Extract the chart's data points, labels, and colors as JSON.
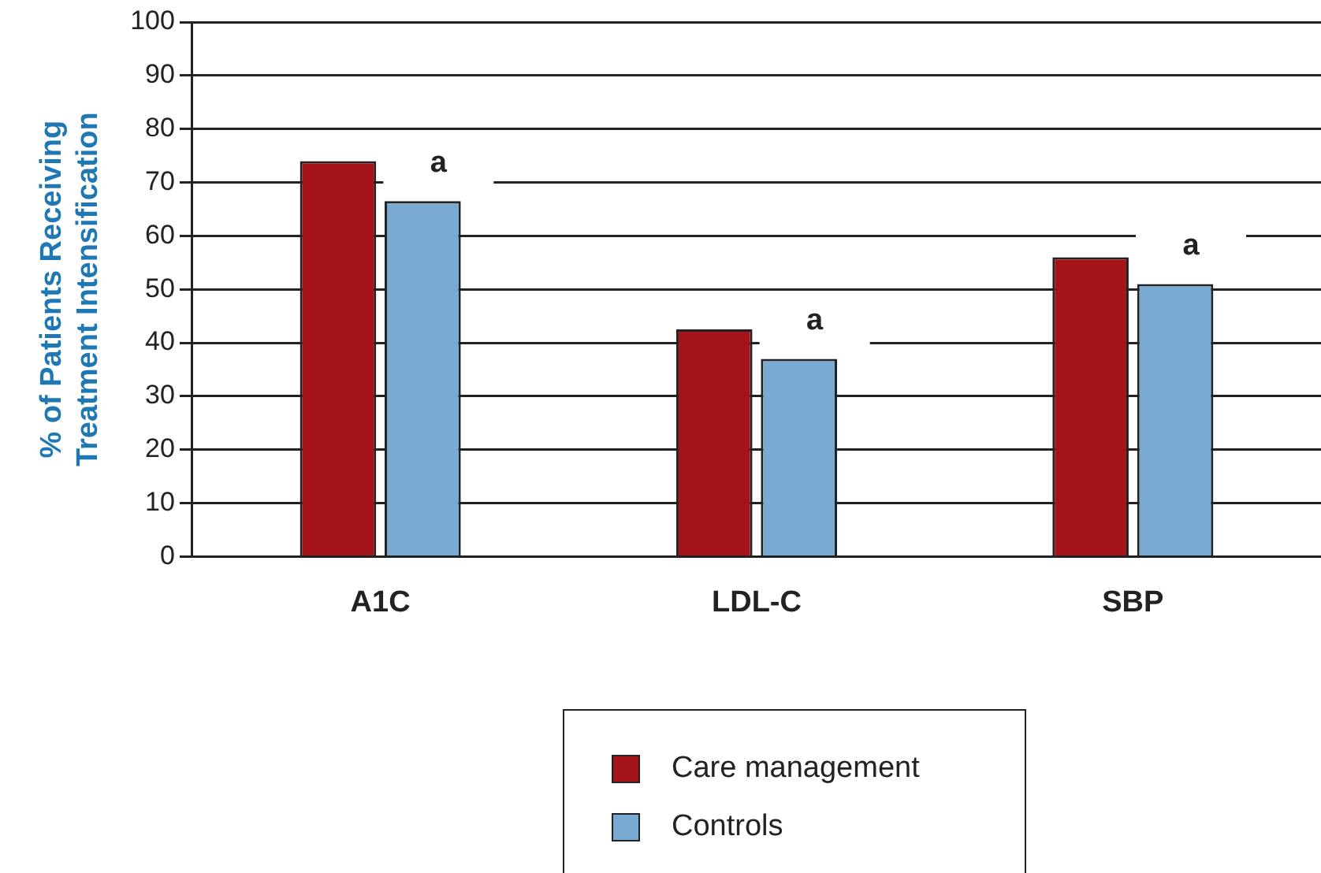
{
  "chart_data": {
    "type": "bar",
    "ylabel": "% of Patients Receiving\nTreatment Intensification",
    "categories": [
      "A1C",
      "LDL-C",
      "SBP"
    ],
    "series": [
      {
        "name": "Care management",
        "color": "#a51419",
        "values": [
          74,
          42.5,
          56
        ]
      },
      {
        "name": "Controls",
        "color": "#78aad2",
        "values": [
          66.5,
          37,
          51
        ]
      }
    ],
    "ylim": [
      0,
      100
    ],
    "yticks": [
      0,
      10,
      20,
      30,
      40,
      50,
      60,
      70,
      80,
      90,
      100
    ],
    "grid": "y",
    "legend": "bottom",
    "annotations": [
      "a",
      "a",
      "a"
    ]
  }
}
